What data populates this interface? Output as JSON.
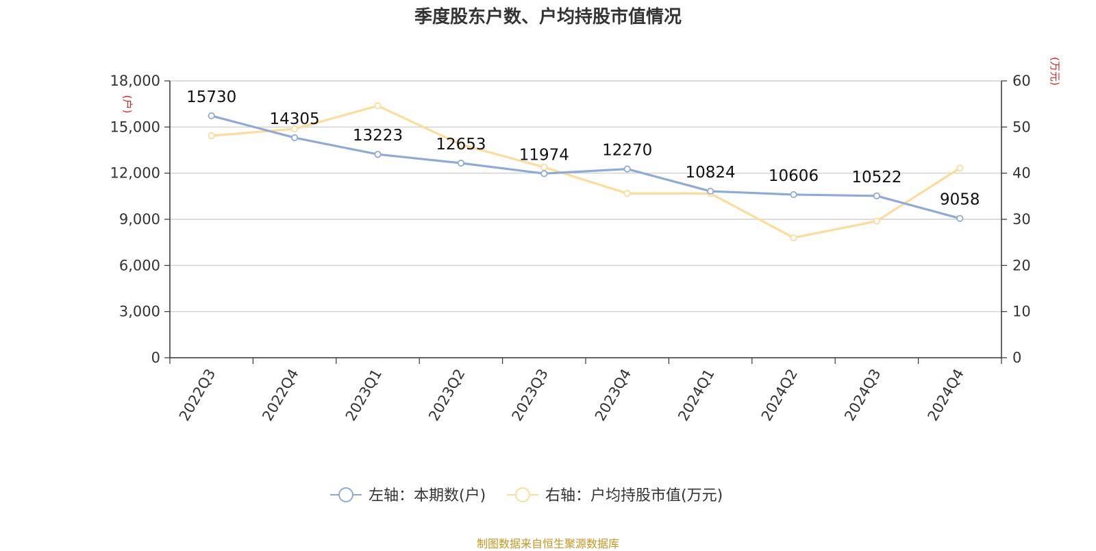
{
  "title": "季度股东户数、户均持股市值情况",
  "source": "制图数据来自恒生聚源数据库",
  "colors": {
    "series_left": "#8eaad8",
    "series_right": "#fddc9a",
    "unit_label": "#e02020",
    "source": "#c8961e",
    "grid": "#c8c8c8",
    "axis": "#333333"
  },
  "chart_data": {
    "type": "line",
    "categories": [
      "2022Q3",
      "2022Q4",
      "2023Q1",
      "2023Q2",
      "2023Q3",
      "2023Q4",
      "2024Q1",
      "2024Q2",
      "2024Q3",
      "2024Q4"
    ],
    "y_left": {
      "unit": "(户)",
      "min": 0,
      "max": 18000,
      "ticks": [
        0,
        3000,
        6000,
        9000,
        12000,
        15000,
        18000
      ],
      "tick_labels": [
        "0",
        "3,000",
        "6,000",
        "9,000",
        "12,000",
        "15,000",
        "18,000"
      ]
    },
    "y_right": {
      "unit": "(万元)",
      "min": 0,
      "max": 60,
      "ticks": [
        0,
        10,
        20,
        30,
        40,
        50,
        60
      ],
      "tick_labels": [
        "0",
        "10",
        "20",
        "30",
        "40",
        "50",
        "60"
      ]
    },
    "grid": true,
    "legend_position": "bottom",
    "series": [
      {
        "name": "左轴：本期数(户)",
        "axis": "left",
        "values": [
          15730,
          14305,
          13223,
          12653,
          11974,
          12270,
          10824,
          10606,
          10522,
          9058
        ],
        "data_labels": [
          "15730",
          "14305",
          "13223",
          "12653",
          "11974",
          "12270",
          "10824",
          "10606",
          "10522",
          "9058"
        ]
      },
      {
        "name": "右轴：户均持股市值(万元)",
        "axis": "right",
        "values": [
          48.1,
          49.6,
          54.6,
          46.2,
          41.3,
          35.6,
          35.6,
          26.0,
          29.6,
          41.1
        ]
      }
    ]
  }
}
